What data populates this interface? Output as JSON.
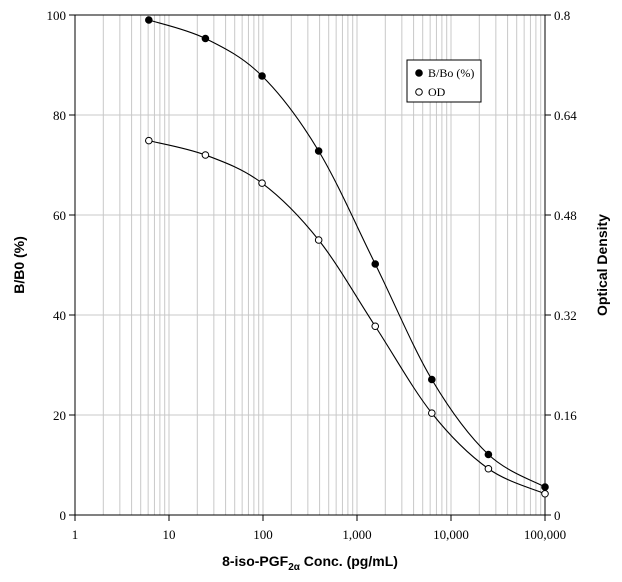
{
  "chart_data": {
    "type": "line",
    "xscale": "log",
    "xlim": [
      1,
      100000
    ],
    "x_ticks": [
      1,
      10,
      100,
      1000,
      10000,
      100000
    ],
    "x_tick_labels": [
      "1",
      "10",
      "100",
      "1,000",
      "10,000",
      "100,000"
    ],
    "y_left": {
      "label": "B/B0 (%)",
      "lim": [
        0,
        100
      ],
      "ticks": [
        0,
        20,
        40,
        60,
        80,
        100
      ],
      "tick_labels": [
        "0",
        "20",
        "40",
        "60",
        "80",
        "100"
      ]
    },
    "y_right": {
      "label": "Optical Density",
      "lim": [
        0,
        0.8
      ],
      "ticks": [
        0,
        0.16,
        0.32,
        0.48,
        0.64,
        0.8
      ],
      "tick_labels": [
        "0",
        "0.16",
        "0.32",
        "0.48",
        "0.64",
        "0.8"
      ]
    },
    "xlabel": {
      "main": "8-iso-PGF",
      "subscript": "2α",
      "suffix": " Conc. (pg/mL)"
    },
    "grid": true,
    "legend": {
      "placement": "top-right"
    },
    "series": [
      {
        "name": "B/Bo (%)",
        "axis": "left",
        "marker": "filled-circle",
        "x": [
          6.1,
          24.4,
          97.7,
          391,
          1563,
          6250,
          25000,
          100000
        ],
        "y": [
          99.0,
          95.3,
          87.8,
          72.8,
          50.2,
          27.1,
          12.1,
          5.6
        ]
      },
      {
        "name": "OD",
        "axis": "right",
        "marker": "open-circle",
        "x": [
          6.1,
          24.4,
          97.7,
          391,
          1563,
          6250,
          25000,
          100000
        ],
        "y": [
          0.599,
          0.576,
          0.531,
          0.44,
          0.302,
          0.163,
          0.074,
          0.034
        ]
      }
    ]
  }
}
